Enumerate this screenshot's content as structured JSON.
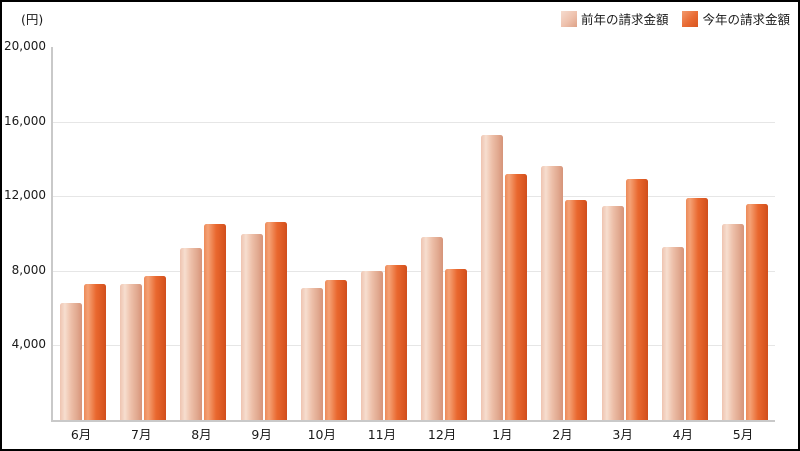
{
  "chart_data": {
    "type": "bar",
    "title": "",
    "ylabel": "(円)",
    "xlabel": "",
    "categories": [
      "6月",
      "7月",
      "8月",
      "9月",
      "10月",
      "11月",
      "12月",
      "1月",
      "2月",
      "3月",
      "4月",
      "5月"
    ],
    "series": [
      {
        "name": "前年の請求金額",
        "key": "prev",
        "color": "#eab9a4",
        "values": [
          6300,
          7300,
          9200,
          10000,
          7100,
          8000,
          9800,
          15300,
          13600,
          11500,
          9300,
          10500
        ]
      },
      {
        "name": "今年の請求金額",
        "key": "curr",
        "color": "#e8622a",
        "values": [
          7300,
          7700,
          10500,
          10600,
          7500,
          8300,
          8100,
          13200,
          11800,
          12900,
          11900,
          11600
        ]
      }
    ],
    "ylim": [
      0,
      20000
    ],
    "yticks": [
      20000,
      16000,
      12000,
      8000,
      4000
    ],
    "ytick_labels": [
      "20,000",
      "16,000",
      "12,000",
      "8,000",
      "4,000"
    ],
    "grid": true,
    "gridlines_at": [
      16000,
      12000,
      8000,
      4000
    ],
    "legend_position": "top-right",
    "colors": {
      "grid": "#e6e6e6",
      "axis": "#c9c9c9",
      "background": "#ffffff",
      "frame_border": "#000000",
      "text": "#1a1a1a"
    }
  }
}
